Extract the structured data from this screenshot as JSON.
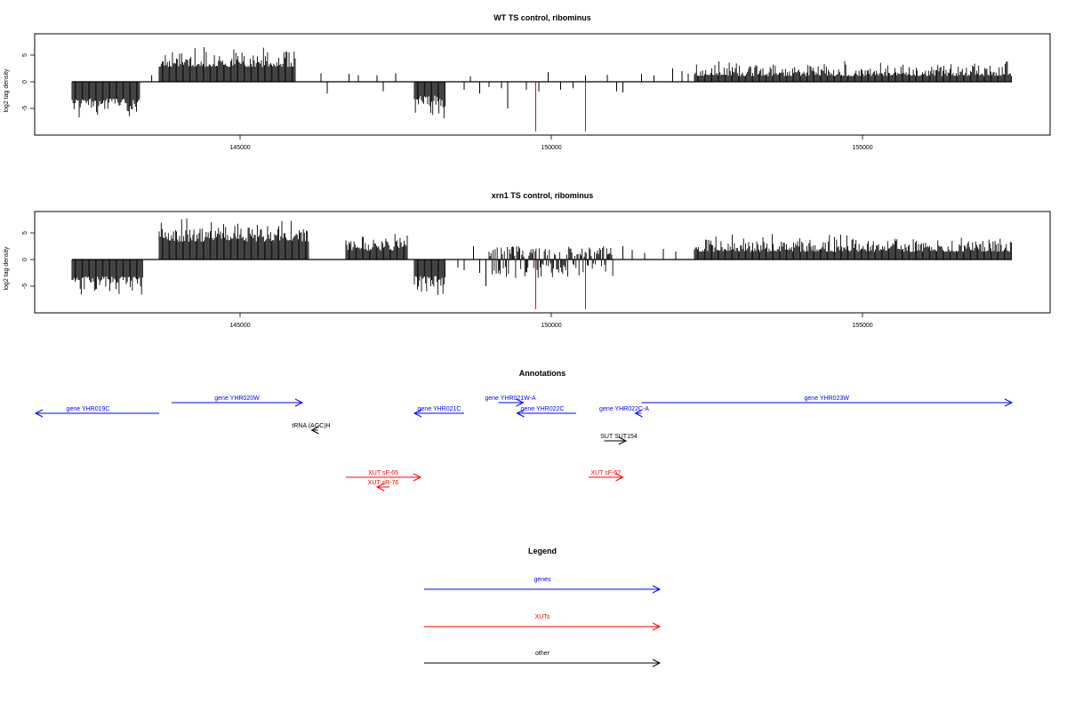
{
  "colors": {
    "gene": "#0000ff",
    "xut": "#ff0000",
    "other": "#000000",
    "bar": "#000000",
    "highlight": "#ff0000"
  },
  "chart_data": [
    {
      "type": "bar",
      "title": "WT TS control, ribominus",
      "ylabel": "log2 tag density",
      "xlim": [
        142000,
        159000
      ],
      "ylim": [
        -9.5,
        8.5
      ],
      "x_ticks": [
        145000,
        150000,
        155000
      ],
      "x_tick_labels": [
        "145000",
        "150000",
        "155000"
      ],
      "y_ticks": [
        -5,
        0,
        5
      ],
      "y_tick_labels": [
        "-5",
        "0",
        "5"
      ],
      "segments": [
        {
          "start": 142300,
          "end": 143400,
          "min": -7.0,
          "max": -2.5
        },
        {
          "start": 143700,
          "end": 145900,
          "min": 2.0,
          "max": 7.2
        },
        {
          "start": 147800,
          "end": 148300,
          "min": -8.5,
          "max": -1.5
        },
        {
          "start": 152300,
          "end": 157400,
          "min": 0.5,
          "max": 4.2
        }
      ],
      "bars": [
        {
          "x": 143580,
          "y": 1.2
        },
        {
          "x": 146300,
          "y": 1.6
        },
        {
          "x": 146400,
          "y": -2.2
        },
        {
          "x": 146750,
          "y": 1.5
        },
        {
          "x": 146900,
          "y": 1.2
        },
        {
          "x": 147200,
          "y": 1.2
        },
        {
          "x": 147300,
          "y": -1.8
        },
        {
          "x": 147500,
          "y": 1.6
        },
        {
          "x": 148600,
          "y": -1.5
        },
        {
          "x": 148700,
          "y": 1.0
        },
        {
          "x": 148850,
          "y": -2.2
        },
        {
          "x": 149000,
          "y": -1.0
        },
        {
          "x": 149200,
          "y": -1.2
        },
        {
          "x": 149300,
          "y": -5.0
        },
        {
          "x": 149600,
          "y": -1.5
        },
        {
          "x": 149800,
          "y": -1.8
        },
        {
          "x": 149950,
          "y": 1.8
        },
        {
          "x": 150150,
          "y": -1.5
        },
        {
          "x": 150350,
          "y": -1.2
        },
        {
          "x": 150550,
          "y": 1.2
        },
        {
          "x": 150900,
          "y": 1.3
        },
        {
          "x": 151050,
          "y": -1.8
        },
        {
          "x": 151150,
          "y": -2.0
        },
        {
          "x": 151450,
          "y": 1.5
        },
        {
          "x": 151650,
          "y": 1.2
        },
        {
          "x": 151950,
          "y": 2.5
        },
        {
          "x": 152100,
          "y": 2.0
        },
        {
          "x": 152200,
          "y": 1.5
        }
      ],
      "highlight_bars": [
        {
          "x": 149750,
          "y": -9.5
        },
        {
          "x": 150550,
          "y": -9.5
        }
      ]
    },
    {
      "type": "bar",
      "title": "xrn1 TS control, ribominus",
      "ylabel": "log2 tag density",
      "xlim": [
        142000,
        159000
      ],
      "ylim": [
        -9.5,
        8.5
      ],
      "x_ticks": [
        145000,
        150000,
        155000
      ],
      "x_tick_labels": [
        "145000",
        "150000",
        "155000"
      ],
      "y_ticks": [
        -5,
        0,
        5
      ],
      "y_tick_labels": [
        "-5",
        "0",
        "5"
      ],
      "segments": [
        {
          "start": 142300,
          "end": 143450,
          "min": -7.2,
          "max": -2.5
        },
        {
          "start": 143700,
          "end": 146100,
          "min": 2.5,
          "max": 8.0
        },
        {
          "start": 146700,
          "end": 147700,
          "min": 1.0,
          "max": 5.5
        },
        {
          "start": 147800,
          "end": 148300,
          "min": -9.0,
          "max": -2.0
        },
        {
          "start": 149000,
          "end": 151000,
          "min": -3.5,
          "max": 2.5
        },
        {
          "start": 152300,
          "end": 157400,
          "min": 0.8,
          "max": 5.0
        }
      ],
      "bars": [
        {
          "x": 148500,
          "y": -1.5
        },
        {
          "x": 148600,
          "y": -2.0
        },
        {
          "x": 148750,
          "y": 2.5
        },
        {
          "x": 148950,
          "y": -5.0
        },
        {
          "x": 148850,
          "y": -2.5
        },
        {
          "x": 151150,
          "y": 2.5
        },
        {
          "x": 151300,
          "y": 1.8
        },
        {
          "x": 151500,
          "y": 1.2
        },
        {
          "x": 151800,
          "y": 2.0
        },
        {
          "x": 152000,
          "y": 1.5
        }
      ],
      "highlight_bars": [
        {
          "x": 149750,
          "y": -9.5
        },
        {
          "x": 150550,
          "y": -9.5
        }
      ]
    }
  ],
  "annotations": {
    "title": "Annotations",
    "features": [
      {
        "label": "gene YHR019C",
        "type": "gene",
        "start": 142000,
        "end": 143700,
        "strand": "-",
        "row": 2
      },
      {
        "label": "gene YHR020W",
        "type": "gene",
        "start": 143900,
        "end": 146000,
        "strand": "+",
        "row": 1
      },
      {
        "label": "tRNA (AGC)H",
        "type": "other",
        "start": 146150,
        "end": 146250,
        "strand": "-",
        "row": 3
      },
      {
        "label": "gene YHR021C",
        "type": "gene",
        "start": 147800,
        "end": 148600,
        "strand": "-",
        "row": 2
      },
      {
        "label": "gene YHR021W-A",
        "type": "gene",
        "start": 149150,
        "end": 149550,
        "strand": "+",
        "row": 1
      },
      {
        "label": "gene YHR022C",
        "type": "gene",
        "start": 149450,
        "end": 150400,
        "strand": "-",
        "row": 2
      },
      {
        "label": "gene YHR022C-A",
        "type": "gene",
        "start": 151350,
        "end": 151450,
        "strand": "-",
        "row": 2
      },
      {
        "label": "gene YHR023W",
        "type": "gene",
        "start": 151450,
        "end": 157400,
        "strand": "+",
        "row": 1
      },
      {
        "label": "SUT SUT154",
        "type": "other",
        "start": 150850,
        "end": 151200,
        "strand": "+",
        "row": 4
      },
      {
        "label": "XUT sF-65",
        "type": "xut",
        "start": 146700,
        "end": 147900,
        "strand": "+",
        "row": 6
      },
      {
        "label": "XUT sR-76",
        "type": "xut",
        "start": 147200,
        "end": 147400,
        "strand": "-",
        "row": 7
      },
      {
        "label": "XUT sF-67",
        "type": "xut",
        "start": 150600,
        "end": 151150,
        "strand": "+",
        "row": 6
      }
    ]
  },
  "legend": {
    "title": "Legend",
    "items": [
      {
        "label": "genes",
        "type": "gene"
      },
      {
        "label": "XUTs",
        "type": "xut"
      },
      {
        "label": "other",
        "type": "other"
      }
    ]
  }
}
